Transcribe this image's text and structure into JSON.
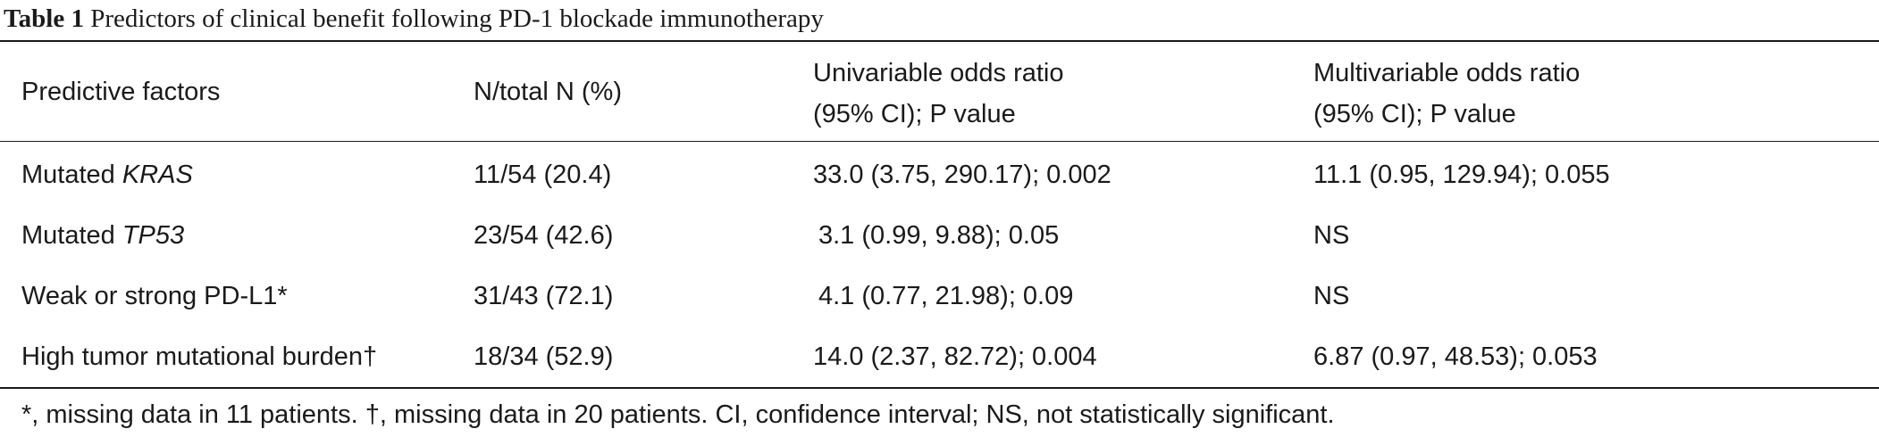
{
  "caption": {
    "label": "Table 1",
    "text": "Predictors of clinical benefit following PD-1 blockade immunotherapy"
  },
  "columns": {
    "factor": "Predictive factors",
    "n": "N/total N (%)",
    "univariable": {
      "line1": "Univariable odds ratio",
      "line2": "(95% CI); P value"
    },
    "multivariable": {
      "line1": "Multivariable odds ratio",
      "line2": "(95% CI); P value"
    }
  },
  "rows": [
    {
      "factor_prefix": "Mutated ",
      "factor_gene": "KRAS",
      "factor_suffix": "",
      "n": "11/54 (20.4)",
      "univariable": "33.0 (3.75, 290.17); 0.002",
      "multivariable": "11.1 (0.95, 129.94); 0.055"
    },
    {
      "factor_prefix": "Mutated ",
      "factor_gene": "TP53",
      "factor_suffix": "",
      "n": "23/54 (42.6)",
      "univariable": "3.1 (0.99, 9.88); 0.05",
      "multivariable": "NS"
    },
    {
      "factor_prefix": "Weak or strong PD-L1*",
      "factor_gene": "",
      "factor_suffix": "",
      "n": "31/43 (72.1)",
      "univariable": "4.1 (0.77, 21.98); 0.09",
      "multivariable": "NS"
    },
    {
      "factor_prefix": "High tumor mutational burden†",
      "factor_gene": "",
      "factor_suffix": "",
      "n": "18/34 (52.9)",
      "univariable": "14.0 (2.37, 82.72); 0.004",
      "multivariable": "6.87 (0.97, 48.53); 0.053"
    }
  ],
  "footnote": "*, missing data in 11 patients. †, missing data in 20 patients. CI, confidence interval; NS, not statistically significant."
}
